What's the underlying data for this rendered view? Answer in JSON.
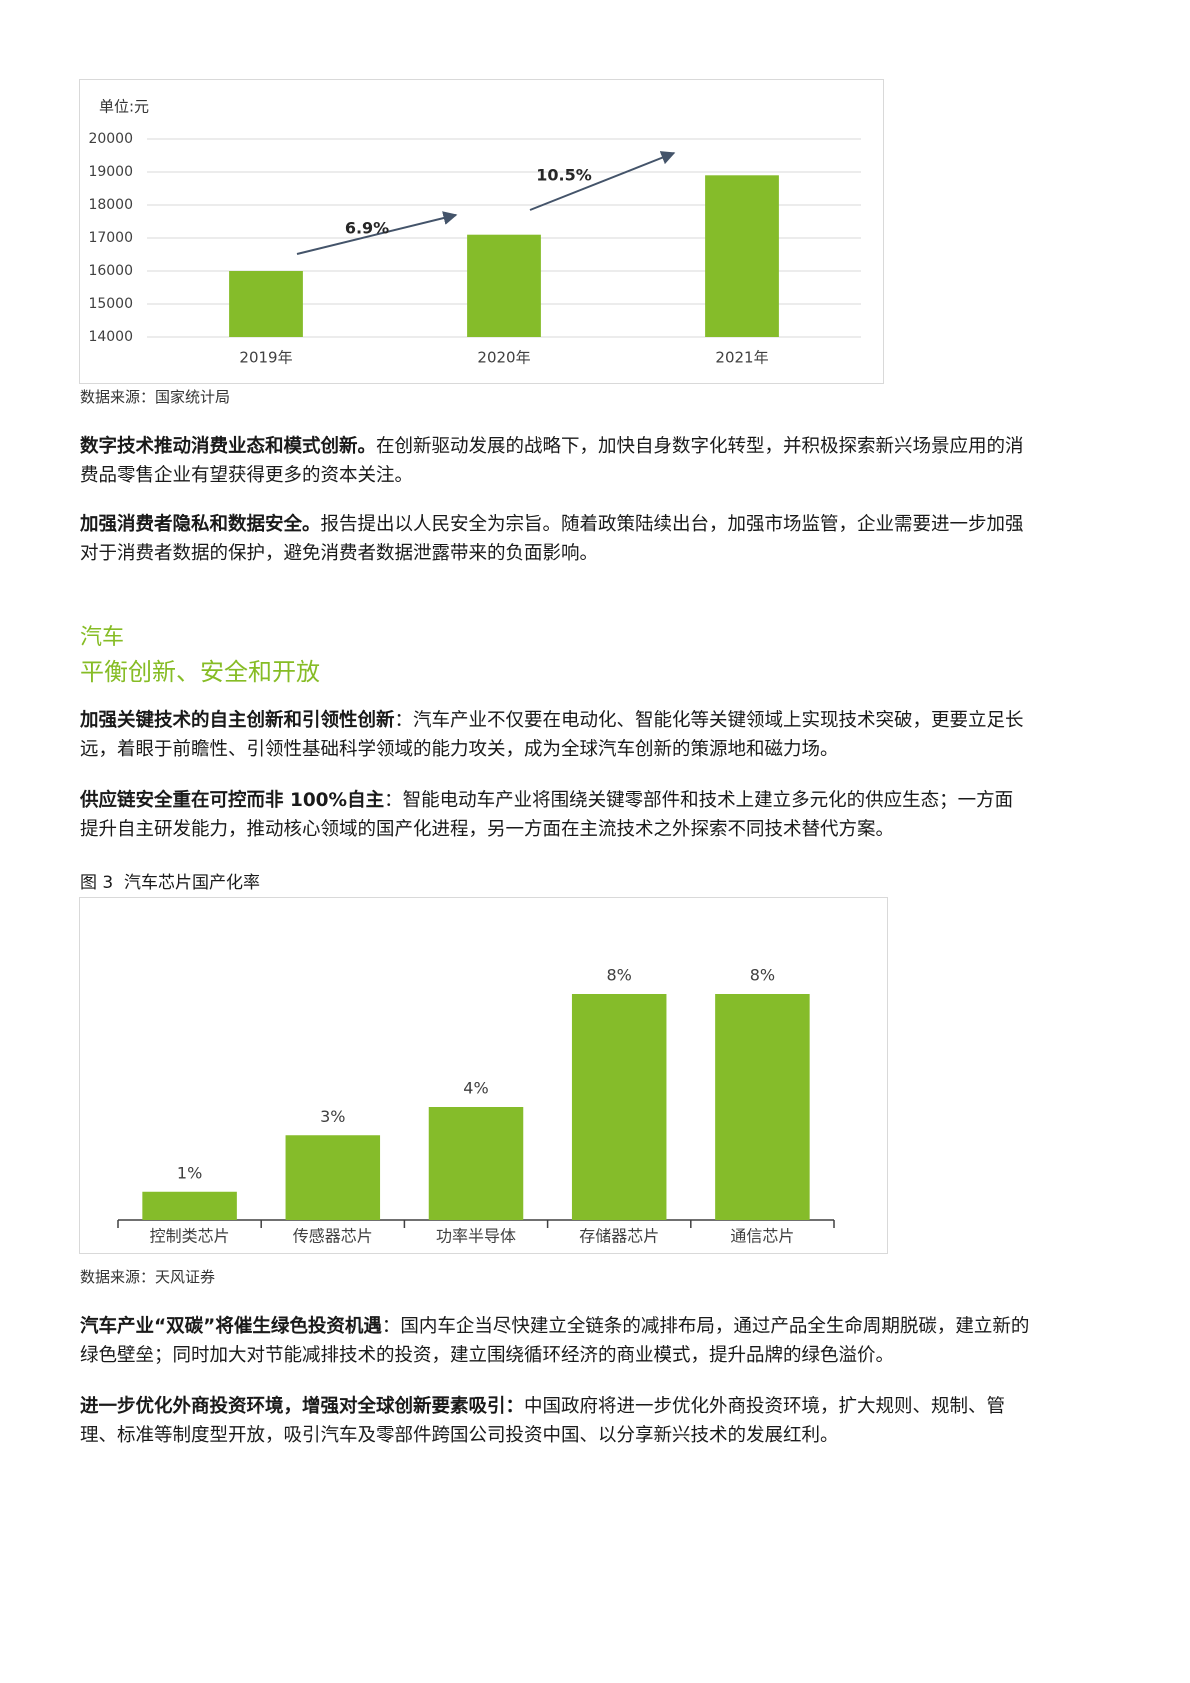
{
  "chart_data": [
    {
      "type": "bar",
      "y_label": "单位:元",
      "categories": [
        "2019年",
        "2020年",
        "2021年"
      ],
      "values": [
        16000,
        17100,
        18900
      ],
      "color": "#85bc2a",
      "ylim": [
        14000,
        20000
      ],
      "yticks": [
        14000,
        15000,
        16000,
        17000,
        18000,
        19000,
        20000
      ],
      "grid": true,
      "annotations": [
        "6.9%",
        "10.5%"
      ],
      "source": "数据来源：国家统计局"
    },
    {
      "type": "bar",
      "title": "图 3  汽车芯片国产化率",
      "categories": [
        "控制类芯片",
        "传感器芯片",
        "功率半导体",
        "存储器芯片",
        "通信芯片"
      ],
      "values": [
        1,
        3,
        4,
        8,
        8
      ],
      "value_labels": [
        "1%",
        "3%",
        "4%",
        "8%",
        "8%"
      ],
      "color": "#85bc2a",
      "source": "数据来源：天风证券"
    }
  ],
  "intro_paragraphs": [
    {
      "lead": "数字技术推动消费业态和模式创新。",
      "text": "在创新驱动发展的战略下，加快自身数字化转型，并积极探索新兴场景应用的消费品零售企业有望获得更多的资本关注。"
    },
    {
      "lead": "加强消费者隐私和数据安全。",
      "text": "报告提出以人民安全为宗旨。随着政策陆续出台，加强市场监管，企业需要进一步加强对于消费者数据的保护，避免消费者数据泄露带来的负面影响。"
    }
  ],
  "section": {
    "title": "汽车",
    "subtitle": "平衡创新、安全和开放",
    "paragraphs": [
      {
        "lead": "加强关键技术的自主创新和引领性创新",
        "text": "：汽车产业不仅要在电动化、智能化等关键领域上实现技术突破，更要立足长远，着眼于前瞻性、引领性基础科学领域的能力攻关，成为全球汽车创新的策源地和磁力场。"
      },
      {
        "lead": "供应链安全重在可控而非 100%自主",
        "text": "：智能电动车产业将围绕关键零部件和技术上建立多元化的供应生态；一方面提升自主研发能力，推动核心领域的国产化进程，另一方面在主流技术之外探索不同技术替代方案。"
      }
    ]
  },
  "closing_paragraphs": [
    {
      "lead": "汽车产业“双碳”将催生绿色投资机遇",
      "text": "：国内车企当尽快建立全链条的减排布局，通过产品全生命周期脱碳，建立新的绿色壁垒；同时加大对节能减排技术的投资，建立围绕循环经济的商业模式，提升品牌的绿色溢价。"
    },
    {
      "lead": "进一步优化外商投资环境，增强对全球创新要素吸引：",
      "text": "中国政府将进一步优化外商投资环境，扩大规则、规制、管理、标准等制度型开放，吸引汽车及零部件跨国公司投资中国、以分享新兴技术的发展红利。"
    }
  ]
}
